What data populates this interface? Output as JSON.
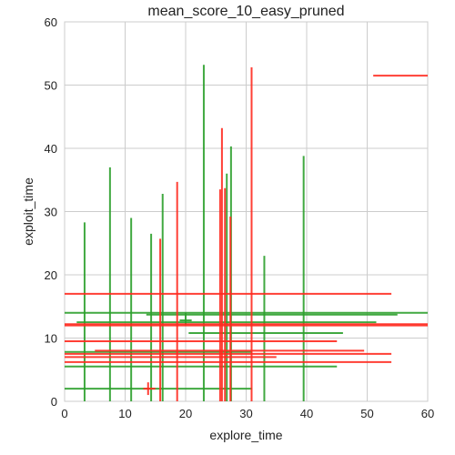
{
  "chart_data": {
    "type": "scatter",
    "title": "mean_score_10_easy_pruned",
    "xlabel": "explore_time",
    "ylabel": "exploit_time",
    "xlim": [
      0,
      60
    ],
    "ylim": [
      0,
      60
    ],
    "xticks": [
      "0",
      "10",
      "20",
      "30",
      "40",
      "50",
      "60"
    ],
    "yticks": [
      "0",
      "10",
      "20",
      "30",
      "40",
      "50",
      "60"
    ],
    "grid": true,
    "series": [
      {
        "color": "#2ca02c",
        "segments": [
          {
            "dir": "v",
            "at": 3.3,
            "from": 0,
            "to": 28.3
          },
          {
            "dir": "v",
            "at": 7.5,
            "from": 0,
            "to": 37.0
          },
          {
            "dir": "v",
            "at": 11.0,
            "from": 0,
            "to": 29.0
          },
          {
            "dir": "v",
            "at": 14.3,
            "from": 0,
            "to": 26.5
          },
          {
            "dir": "v",
            "at": 16.2,
            "from": 0,
            "to": 32.8
          },
          {
            "dir": "v",
            "at": 23.0,
            "from": 0,
            "to": 53.2
          },
          {
            "dir": "v",
            "at": 26.8,
            "from": 0,
            "to": 36.0
          },
          {
            "dir": "v",
            "at": 27.5,
            "from": 0,
            "to": 40.3
          },
          {
            "dir": "v",
            "at": 33.0,
            "from": 0,
            "to": 23.0
          },
          {
            "dir": "v",
            "at": 39.5,
            "from": 0,
            "to": 38.8
          },
          {
            "dir": "v",
            "at": 20.0,
            "from": 12.0,
            "to": 14.0
          },
          {
            "dir": "h",
            "at": 14.0,
            "from": 0,
            "to": 60
          },
          {
            "dir": "h",
            "at": 13.7,
            "from": 13.5,
            "to": 55
          },
          {
            "dir": "h",
            "at": 12.8,
            "from": 19.0,
            "to": 21.0
          },
          {
            "dir": "h",
            "at": 12.5,
            "from": 2.0,
            "to": 51.5
          },
          {
            "dir": "h",
            "at": 10.8,
            "from": 20.5,
            "to": 46.0
          },
          {
            "dir": "h",
            "at": 7.8,
            "from": 0,
            "to": 31.0
          },
          {
            "dir": "h",
            "at": 5.5,
            "from": 0,
            "to": 45.0
          },
          {
            "dir": "h",
            "at": 2.0,
            "from": 0,
            "to": 31.0
          }
        ]
      },
      {
        "color": "#ff2a1f",
        "segments": [
          {
            "dir": "v",
            "at": 13.8,
            "from": 1.0,
            "to": 3.0
          },
          {
            "dir": "v",
            "at": 15.8,
            "from": 0,
            "to": 25.7
          },
          {
            "dir": "v",
            "at": 18.6,
            "from": 0,
            "to": 34.7
          },
          {
            "dir": "v",
            "at": 25.7,
            "from": 0,
            "to": 33.5
          },
          {
            "dir": "v",
            "at": 26.0,
            "from": 0,
            "to": 43.2
          },
          {
            "dir": "v",
            "at": 26.5,
            "from": 0,
            "to": 33.7
          },
          {
            "dir": "v",
            "at": 27.4,
            "from": 0,
            "to": 29.2
          },
          {
            "dir": "v",
            "at": 30.9,
            "from": 0,
            "to": 52.8
          },
          {
            "dir": "h",
            "at": 51.5,
            "from": 51.0,
            "to": 60
          },
          {
            "dir": "h",
            "at": 17.0,
            "from": 0,
            "to": 54.0
          },
          {
            "dir": "h",
            "at": 12.2,
            "from": 0,
            "to": 60
          },
          {
            "dir": "h",
            "at": 12.0,
            "from": 0,
            "to": 60
          },
          {
            "dir": "h",
            "at": 9.5,
            "from": 0,
            "to": 45.0
          },
          {
            "dir": "h",
            "at": 8.0,
            "from": 5.0,
            "to": 49.5
          },
          {
            "dir": "h",
            "at": 7.5,
            "from": 0,
            "to": 54.0
          },
          {
            "dir": "h",
            "at": 7.0,
            "from": 0,
            "to": 35.0
          },
          {
            "dir": "h",
            "at": 6.2,
            "from": 0,
            "to": 54.0
          },
          {
            "dir": "h",
            "at": 2.0,
            "from": 13.0,
            "to": 15.0
          }
        ]
      }
    ]
  }
}
